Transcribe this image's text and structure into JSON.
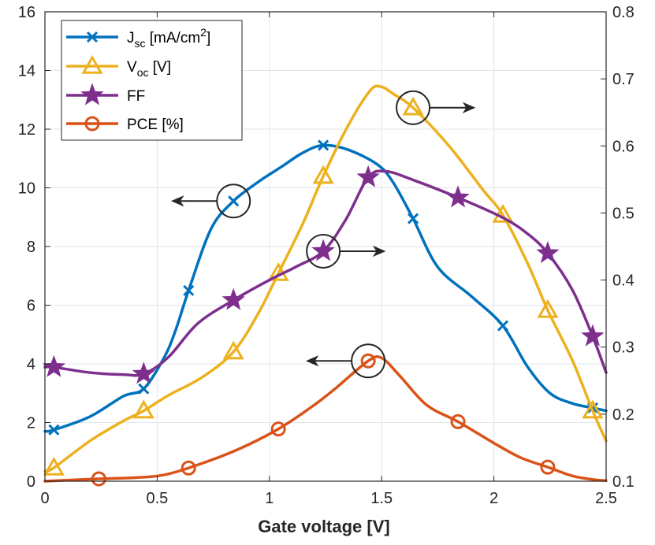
{
  "chart_data": {
    "type": "line",
    "title": "",
    "xlabel": "Gate voltage [V]",
    "ylabel": "",
    "y2label": "",
    "xlim": [
      0,
      2.5
    ],
    "ylim": [
      0,
      16
    ],
    "y2lim": [
      0.1,
      0.8
    ],
    "xticks": [
      "0",
      "0.5",
      "1",
      "1.5",
      "2",
      "2.5"
    ],
    "yticks": [
      "0",
      "2",
      "4",
      "6",
      "8",
      "10",
      "12",
      "14",
      "16"
    ],
    "y2ticks": [
      "0.1",
      "0.2",
      "0.3",
      "0.4",
      "0.5",
      "0.6",
      "0.7",
      "0.8"
    ],
    "grid": true,
    "legend_position": "top-left",
    "series": [
      {
        "name": "Jsc [mA/cm2]",
        "legend_main": "J",
        "legend_sub": "sc",
        "legend_rest": " [mA/cm",
        "legend_sup": "2",
        "legend_end": "]",
        "axis": "left",
        "color": "#0072BD",
        "marker": "x",
        "x": [
          0.04,
          0.44,
          0.64,
          0.84,
          1.24,
          1.64,
          2.04,
          2.44
        ],
        "values": [
          1.75,
          3.15,
          6.5,
          9.55,
          11.45,
          8.95,
          5.3,
          2.5
        ],
        "curve_x": [
          0.0,
          0.04,
          0.2,
          0.35,
          0.44,
          0.53,
          0.58,
          0.64,
          0.74,
          0.84,
          0.95,
          1.05,
          1.15,
          1.24,
          1.35,
          1.48,
          1.55,
          1.64,
          1.75,
          1.9,
          2.04,
          2.15,
          2.25,
          2.35,
          2.44,
          2.5
        ],
        "curve_y": [
          1.7,
          1.75,
          2.2,
          2.9,
          3.15,
          4.2,
          5.1,
          6.5,
          8.6,
          9.55,
          10.2,
          10.7,
          11.2,
          11.45,
          11.3,
          10.8,
          10.2,
          8.95,
          7.3,
          6.3,
          5.3,
          3.9,
          3.0,
          2.65,
          2.5,
          2.4
        ]
      },
      {
        "name": "Voc [V]",
        "legend_main": "V",
        "legend_sub": "oc",
        "legend_rest": " [V]",
        "legend_sup": "",
        "legend_end": "",
        "axis": "right",
        "color": "#EDB120",
        "marker": "triangle",
        "x": [
          0.04,
          0.44,
          0.84,
          1.04,
          1.24,
          1.64,
          2.04,
          2.24,
          2.44
        ],
        "values": [
          0.12,
          0.205,
          0.293,
          0.41,
          0.555,
          0.657,
          0.497,
          0.355,
          0.205
        ],
        "curve_x": [
          0.0,
          0.04,
          0.2,
          0.35,
          0.44,
          0.55,
          0.7,
          0.84,
          0.95,
          1.04,
          1.15,
          1.24,
          1.35,
          1.45,
          1.5,
          1.55,
          1.64,
          1.8,
          1.95,
          2.04,
          2.15,
          2.24,
          2.35,
          2.44,
          2.5
        ],
        "curve_y": [
          0.115,
          0.12,
          0.16,
          0.19,
          0.205,
          0.228,
          0.255,
          0.293,
          0.35,
          0.41,
          0.485,
          0.555,
          0.63,
          0.683,
          0.688,
          0.678,
          0.657,
          0.6,
          0.535,
          0.497,
          0.425,
          0.355,
          0.28,
          0.205,
          0.16
        ]
      },
      {
        "name": "FF",
        "legend_main": "FF",
        "legend_sub": "",
        "legend_rest": "",
        "legend_sup": "",
        "legend_end": "",
        "axis": "right",
        "color": "#7E2F8E",
        "marker": "star",
        "x": [
          0.04,
          0.44,
          0.84,
          1.24,
          1.44,
          1.84,
          2.24,
          2.44
        ],
        "values": [
          0.27,
          0.26,
          0.37,
          0.443,
          0.553,
          0.523,
          0.44,
          0.316
        ],
        "curve_x": [
          0.0,
          0.04,
          0.2,
          0.35,
          0.44,
          0.55,
          0.68,
          0.84,
          1.0,
          1.12,
          1.24,
          1.34,
          1.44,
          1.52,
          1.65,
          1.84,
          2.04,
          2.15,
          2.24,
          2.35,
          2.44,
          2.5
        ],
        "curve_y": [
          0.27,
          0.27,
          0.262,
          0.259,
          0.26,
          0.285,
          0.335,
          0.37,
          0.4,
          0.42,
          0.443,
          0.49,
          0.553,
          0.562,
          0.548,
          0.523,
          0.493,
          0.469,
          0.44,
          0.385,
          0.316,
          0.262
        ]
      },
      {
        "name": "PCE [%]",
        "legend_main": "PCE [%]",
        "legend_sub": "",
        "legend_rest": "",
        "legend_sup": "",
        "legend_end": "",
        "axis": "left",
        "color": "#D95319",
        "marker": "circle",
        "x": [
          0.24,
          0.64,
          1.04,
          1.44,
          1.84,
          2.24
        ],
        "values": [
          0.08,
          0.45,
          1.78,
          4.1,
          2.03,
          0.48
        ],
        "curve_x": [
          0.0,
          0.24,
          0.4,
          0.52,
          0.64,
          0.85,
          1.04,
          1.2,
          1.3,
          1.44,
          1.5,
          1.58,
          1.7,
          1.84,
          2.0,
          2.12,
          2.24,
          2.35,
          2.45,
          2.5
        ],
        "curve_y": [
          0.0,
          0.08,
          0.12,
          0.2,
          0.45,
          1.05,
          1.78,
          2.6,
          3.2,
          4.1,
          4.2,
          3.6,
          2.6,
          2.03,
          1.3,
          0.8,
          0.48,
          0.18,
          0.05,
          0.02
        ]
      }
    ],
    "annotations": [
      {
        "series": "Jsc [mA/cm2]",
        "at": [
          0.84,
          9.55
        ],
        "direction": "left"
      },
      {
        "series": "Voc [V]",
        "at": [
          1.64,
          0.657
        ],
        "direction": "right"
      },
      {
        "series": "FF",
        "at": [
          1.24,
          0.443
        ],
        "direction": "right"
      },
      {
        "series": "PCE [%]",
        "at": [
          1.44,
          4.1
        ],
        "direction": "left"
      }
    ]
  }
}
